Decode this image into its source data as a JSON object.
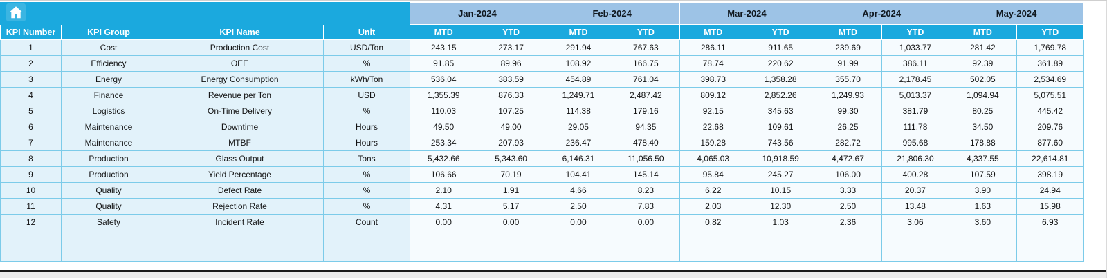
{
  "header": {
    "home_icon": "home",
    "months": [
      "Jan-2024",
      "Feb-2024",
      "Mar-2024",
      "Apr-2024",
      "May-2024"
    ],
    "period_labels": [
      "MTD",
      "YTD"
    ],
    "kpi_columns": [
      "KPI Number",
      "KPI Group",
      "KPI Name",
      "Unit"
    ]
  },
  "table": {
    "empty_row_count": 2,
    "rows": [
      {
        "number": "1",
        "group": "Cost",
        "name": "Production Cost",
        "unit": "USD/Ton",
        "values": [
          "243.15",
          "273.17",
          "291.94",
          "767.63",
          "286.11",
          "911.65",
          "239.69",
          "1,033.77",
          "281.42",
          "1,769.78"
        ]
      },
      {
        "number": "2",
        "group": "Efficiency",
        "name": "OEE",
        "unit": "%",
        "values": [
          "91.85",
          "89.96",
          "108.92",
          "166.75",
          "78.74",
          "220.62",
          "91.99",
          "386.11",
          "92.39",
          "361.89"
        ]
      },
      {
        "number": "3",
        "group": "Energy",
        "name": "Energy Consumption",
        "unit": "kWh/Ton",
        "values": [
          "536.04",
          "383.59",
          "454.89",
          "761.04",
          "398.73",
          "1,358.28",
          "355.70",
          "2,178.45",
          "502.05",
          "2,534.69"
        ]
      },
      {
        "number": "4",
        "group": "Finance",
        "name": "Revenue per Ton",
        "unit": "USD",
        "values": [
          "1,355.39",
          "876.33",
          "1,249.71",
          "2,487.42",
          "809.12",
          "2,852.26",
          "1,249.93",
          "5,013.37",
          "1,094.94",
          "5,075.51"
        ]
      },
      {
        "number": "5",
        "group": "Logistics",
        "name": "On-Time Delivery",
        "unit": "%",
        "values": [
          "110.03",
          "107.25",
          "114.38",
          "179.16",
          "92.15",
          "345.63",
          "99.30",
          "381.79",
          "80.25",
          "445.42"
        ]
      },
      {
        "number": "6",
        "group": "Maintenance",
        "name": "Downtime",
        "unit": "Hours",
        "values": [
          "49.50",
          "49.00",
          "29.05",
          "94.35",
          "22.68",
          "109.61",
          "26.25",
          "111.78",
          "34.50",
          "209.76"
        ]
      },
      {
        "number": "7",
        "group": "Maintenance",
        "name": "MTBF",
        "unit": "Hours",
        "values": [
          "253.34",
          "207.93",
          "236.47",
          "478.40",
          "159.28",
          "743.56",
          "282.72",
          "995.68",
          "178.88",
          "877.60"
        ]
      },
      {
        "number": "8",
        "group": "Production",
        "name": "Glass Output",
        "unit": "Tons",
        "values": [
          "5,432.66",
          "5,343.60",
          "6,146.31",
          "11,056.50",
          "4,065.03",
          "10,918.59",
          "4,472.67",
          "21,806.30",
          "4,337.55",
          "22,614.81"
        ]
      },
      {
        "number": "9",
        "group": "Production",
        "name": "Yield Percentage",
        "unit": "%",
        "values": [
          "106.66",
          "70.19",
          "104.41",
          "145.14",
          "95.84",
          "245.27",
          "106.00",
          "400.28",
          "107.59",
          "398.19"
        ]
      },
      {
        "number": "10",
        "group": "Quality",
        "name": "Defect Rate",
        "unit": "%",
        "values": [
          "2.10",
          "1.91",
          "4.66",
          "8.23",
          "6.22",
          "10.15",
          "3.33",
          "20.37",
          "3.90",
          "24.94"
        ]
      },
      {
        "number": "11",
        "group": "Quality",
        "name": "Rejection Rate",
        "unit": "%",
        "values": [
          "4.31",
          "5.17",
          "2.50",
          "7.83",
          "2.03",
          "12.30",
          "2.50",
          "13.48",
          "1.63",
          "15.98"
        ]
      },
      {
        "number": "12",
        "group": "Safety",
        "name": "Incident Rate",
        "unit": "Count",
        "values": [
          "0.00",
          "0.00",
          "0.00",
          "0.00",
          "0.82",
          "1.03",
          "2.36",
          "3.06",
          "3.60",
          "6.93"
        ]
      }
    ]
  },
  "colors": {
    "header_teal": "#1BA9DE",
    "month_blue": "#9DC3E6",
    "grid_line": "#7CCBE9",
    "left_col_bg": "#E2F2FA",
    "value_bg": "#F6FBFE"
  }
}
